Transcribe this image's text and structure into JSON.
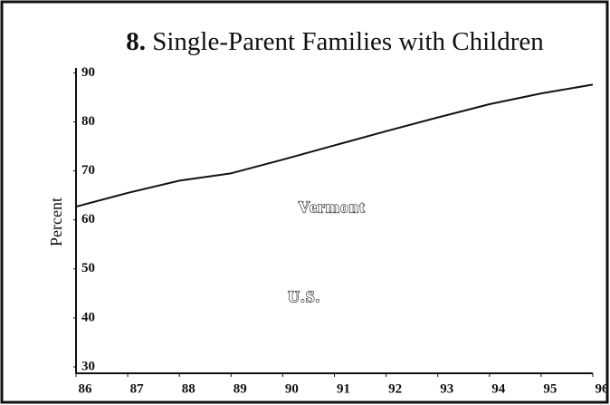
{
  "chart_data": {
    "type": "line",
    "title_number": "8.",
    "title": "Single-Parent Families with Children",
    "ylabel": "Percent",
    "x": [
      86,
      87,
      88,
      89,
      90,
      91,
      92,
      93,
      94,
      95,
      96
    ],
    "values": [
      62.7,
      65.5,
      68,
      69.5,
      72.3,
      75.2,
      78.1,
      80.9,
      83.6,
      85.8,
      87.6
    ],
    "color": "#111111",
    "xlim": [
      86,
      96
    ],
    "xticks": [
      86,
      87,
      88,
      89,
      90,
      91,
      92,
      93,
      94,
      95,
      96
    ],
    "ylim": [
      28.7,
      91
    ],
    "yticks": [
      30,
      40,
      50,
      60,
      70,
      80,
      90
    ],
    "annotations": [
      {
        "text": "Vermont",
        "x": 90.3,
        "y": 62.3
      },
      {
        "text": "U.S.",
        "x": 90.1,
        "y": 44
      }
    ]
  }
}
